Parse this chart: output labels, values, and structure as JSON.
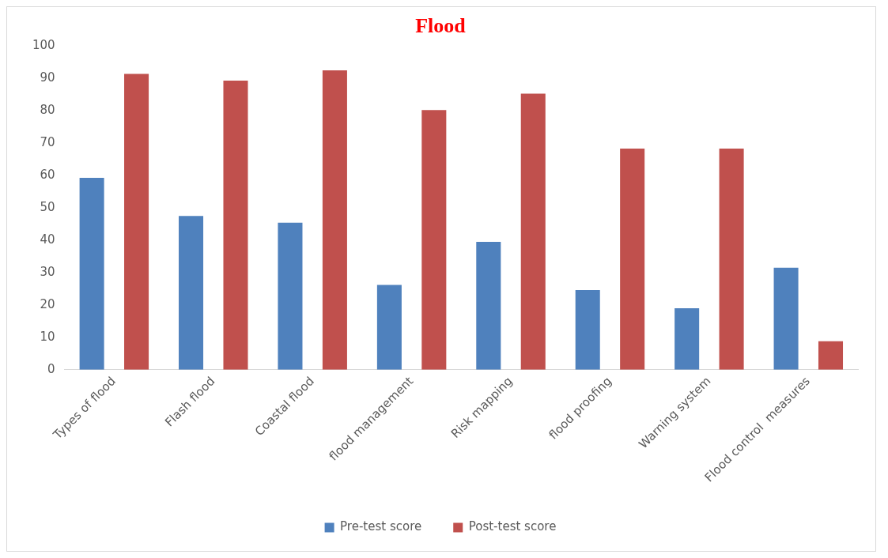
{
  "chart_data": {
    "type": "bar",
    "title": "Flood",
    "categories": [
      "Types of flood",
      "Flash flood",
      "Coastal flood",
      "flood management",
      "Risk mapping",
      "flood proofing",
      "Warning system",
      "Flood control  measures"
    ],
    "series": [
      {
        "name": "Pre-test score",
        "color": "#4f81bd",
        "values": [
          59.3,
          47.5,
          45.4,
          26.2,
          39.5,
          24.6,
          19,
          31.5
        ]
      },
      {
        "name": "Post-test score",
        "color": "#c0504d",
        "values": [
          91.4,
          89.3,
          92.5,
          80.2,
          85.3,
          68.3,
          68.3,
          8.8
        ]
      }
    ],
    "ylim": [
      0,
      100
    ],
    "yticks": [
      0,
      10,
      20,
      30,
      40,
      50,
      60,
      70,
      80,
      90,
      100
    ],
    "grid": false,
    "legend": "bottom"
  }
}
